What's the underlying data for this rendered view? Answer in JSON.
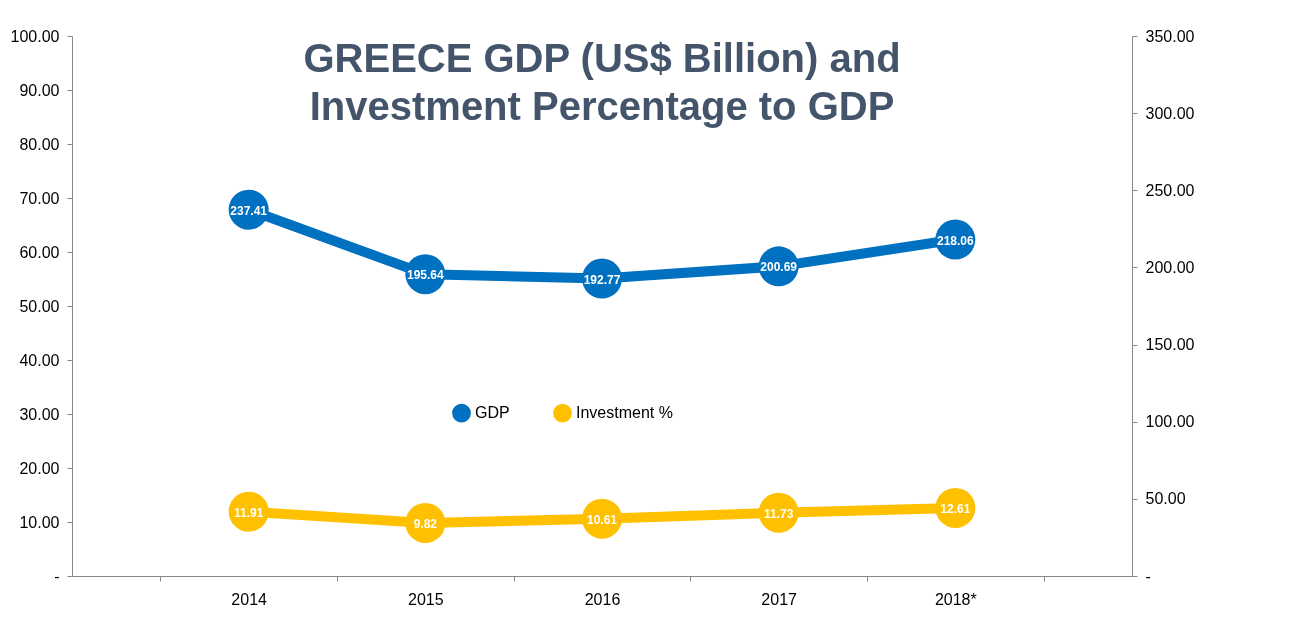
{
  "chart_data": {
    "type": "line",
    "title": "GREECE GDP (US$ Billion) and Investment Percentage to GDP",
    "categories": [
      "2014",
      "2015",
      "2016",
      "2017",
      "2018*"
    ],
    "series": [
      {
        "name": "GDP",
        "color": "#0070c0",
        "values": [
          237.41,
          195.64,
          192.77,
          200.69,
          218.06
        ],
        "axis": "y2"
      },
      {
        "name": "Investment %",
        "color": "#ffc000",
        "values": [
          11.91,
          9.82,
          10.61,
          11.73,
          12.61
        ]
      }
    ],
    "ylim": [
      0,
      100
    ],
    "yticks": [
      {
        "value": 0,
        "label": "-"
      },
      {
        "value": 10,
        "label": "10.00"
      },
      {
        "value": 20,
        "label": "20.00"
      },
      {
        "value": 30,
        "label": "30.00"
      },
      {
        "value": 40,
        "label": "40.00"
      },
      {
        "value": 50,
        "label": "50.00"
      },
      {
        "value": 60,
        "label": "60.00"
      },
      {
        "value": 70,
        "label": "70.00"
      },
      {
        "value": 80,
        "label": "80.00"
      },
      {
        "value": 90,
        "label": "90.00"
      },
      {
        "value": 100,
        "label": "100.00"
      }
    ],
    "y2lim": [
      0,
      350
    ],
    "y2ticks": [
      {
        "value": 0,
        "label": "-"
      },
      {
        "value": 50,
        "label": "50.00"
      },
      {
        "value": 100,
        "label": "100.00"
      },
      {
        "value": 150,
        "label": "150.00"
      },
      {
        "value": 200,
        "label": "200.00"
      },
      {
        "value": 250,
        "label": "250.00"
      },
      {
        "value": 300,
        "label": "300.00"
      },
      {
        "value": 350,
        "label": "350.00"
      }
    ],
    "data_labels": true,
    "legend": "center",
    "marker": "circle",
    "line_style": "solid",
    "grid": false
  }
}
